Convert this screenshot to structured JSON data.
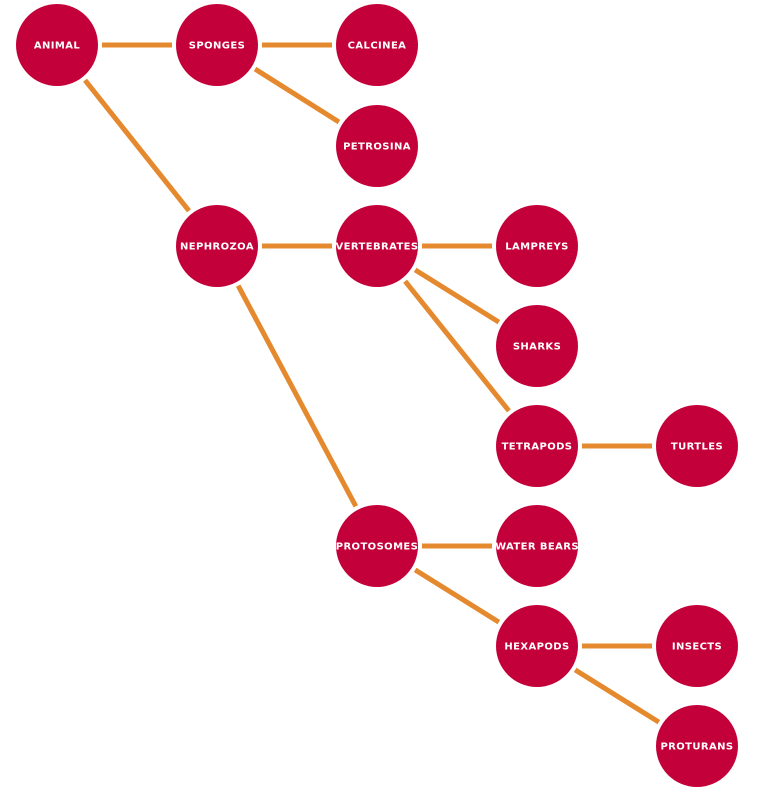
{
  "colors": {
    "node_fill": "#c4003a",
    "link": "#e5892e",
    "label": "#ffffff",
    "background": "#ffffff"
  },
  "tree": {
    "nodes": [
      {
        "id": "animal",
        "label": "ANIMAL"
      },
      {
        "id": "sponges",
        "label": "SPONGES"
      },
      {
        "id": "calcinea",
        "label": "CALCINEA"
      },
      {
        "id": "petrosina",
        "label": "PETROSINA"
      },
      {
        "id": "nephrozoa",
        "label": "NEPHROZOA"
      },
      {
        "id": "vertebrates",
        "label": "VERTEBRATES"
      },
      {
        "id": "lampreys",
        "label": "LAMPREYS"
      },
      {
        "id": "sharks",
        "label": "SHARKS"
      },
      {
        "id": "tetrapods",
        "label": "TETRAPODS"
      },
      {
        "id": "turtles",
        "label": "TURTLES"
      },
      {
        "id": "protosomes",
        "label": "PROTOSOMES"
      },
      {
        "id": "water-bears",
        "label": "WATER BEARS"
      },
      {
        "id": "hexapods",
        "label": "HEXAPODS"
      },
      {
        "id": "insects",
        "label": "INSECTS"
      },
      {
        "id": "proturans",
        "label": "PROTURANS"
      }
    ],
    "edges": [
      {
        "from": "animal",
        "to": "sponges"
      },
      {
        "from": "animal",
        "to": "nephrozoa"
      },
      {
        "from": "sponges",
        "to": "calcinea"
      },
      {
        "from": "sponges",
        "to": "petrosina"
      },
      {
        "from": "nephrozoa",
        "to": "vertebrates"
      },
      {
        "from": "nephrozoa",
        "to": "protosomes"
      },
      {
        "from": "vertebrates",
        "to": "lampreys"
      },
      {
        "from": "vertebrates",
        "to": "sharks"
      },
      {
        "from": "vertebrates",
        "to": "tetrapods"
      },
      {
        "from": "tetrapods",
        "to": "turtles"
      },
      {
        "from": "protosomes",
        "to": "water-bears"
      },
      {
        "from": "protosomes",
        "to": "hexapods"
      },
      {
        "from": "hexapods",
        "to": "insects"
      },
      {
        "from": "hexapods",
        "to": "proturans"
      }
    ]
  }
}
